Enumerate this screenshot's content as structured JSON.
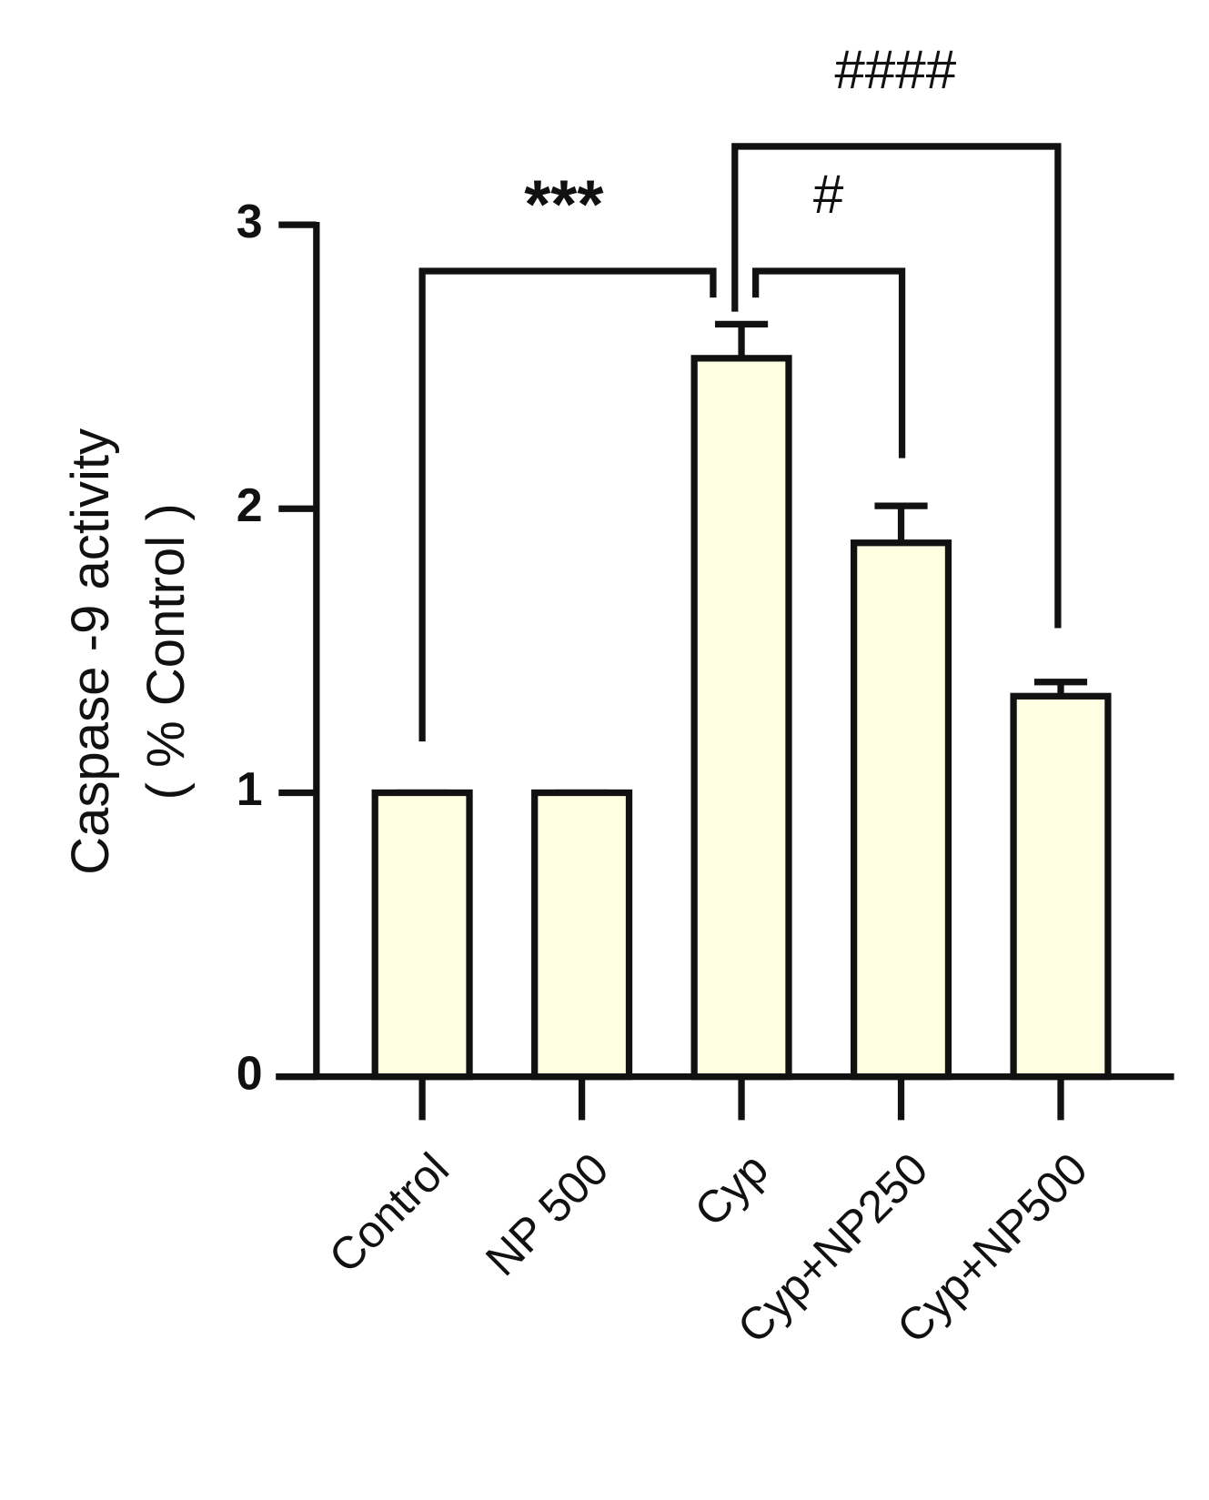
{
  "chart_data": {
    "type": "bar",
    "y_label_lines": [
      "Caspase -9 activity",
      "( % Control )"
    ],
    "categories": [
      "Control",
      "NP 500",
      "Cyp",
      "Cyp+NP250",
      "Cyp+NP500"
    ],
    "values": [
      1.0,
      1.0,
      2.53,
      1.88,
      1.34
    ],
    "errors": [
      0.0,
      0.0,
      0.12,
      0.13,
      0.05
    ],
    "color": "#ffffe2",
    "ylim": [
      0,
      3
    ],
    "yticks": [
      0,
      1,
      2,
      3
    ],
    "annotations": [
      "***",
      "#",
      "####"
    ]
  }
}
